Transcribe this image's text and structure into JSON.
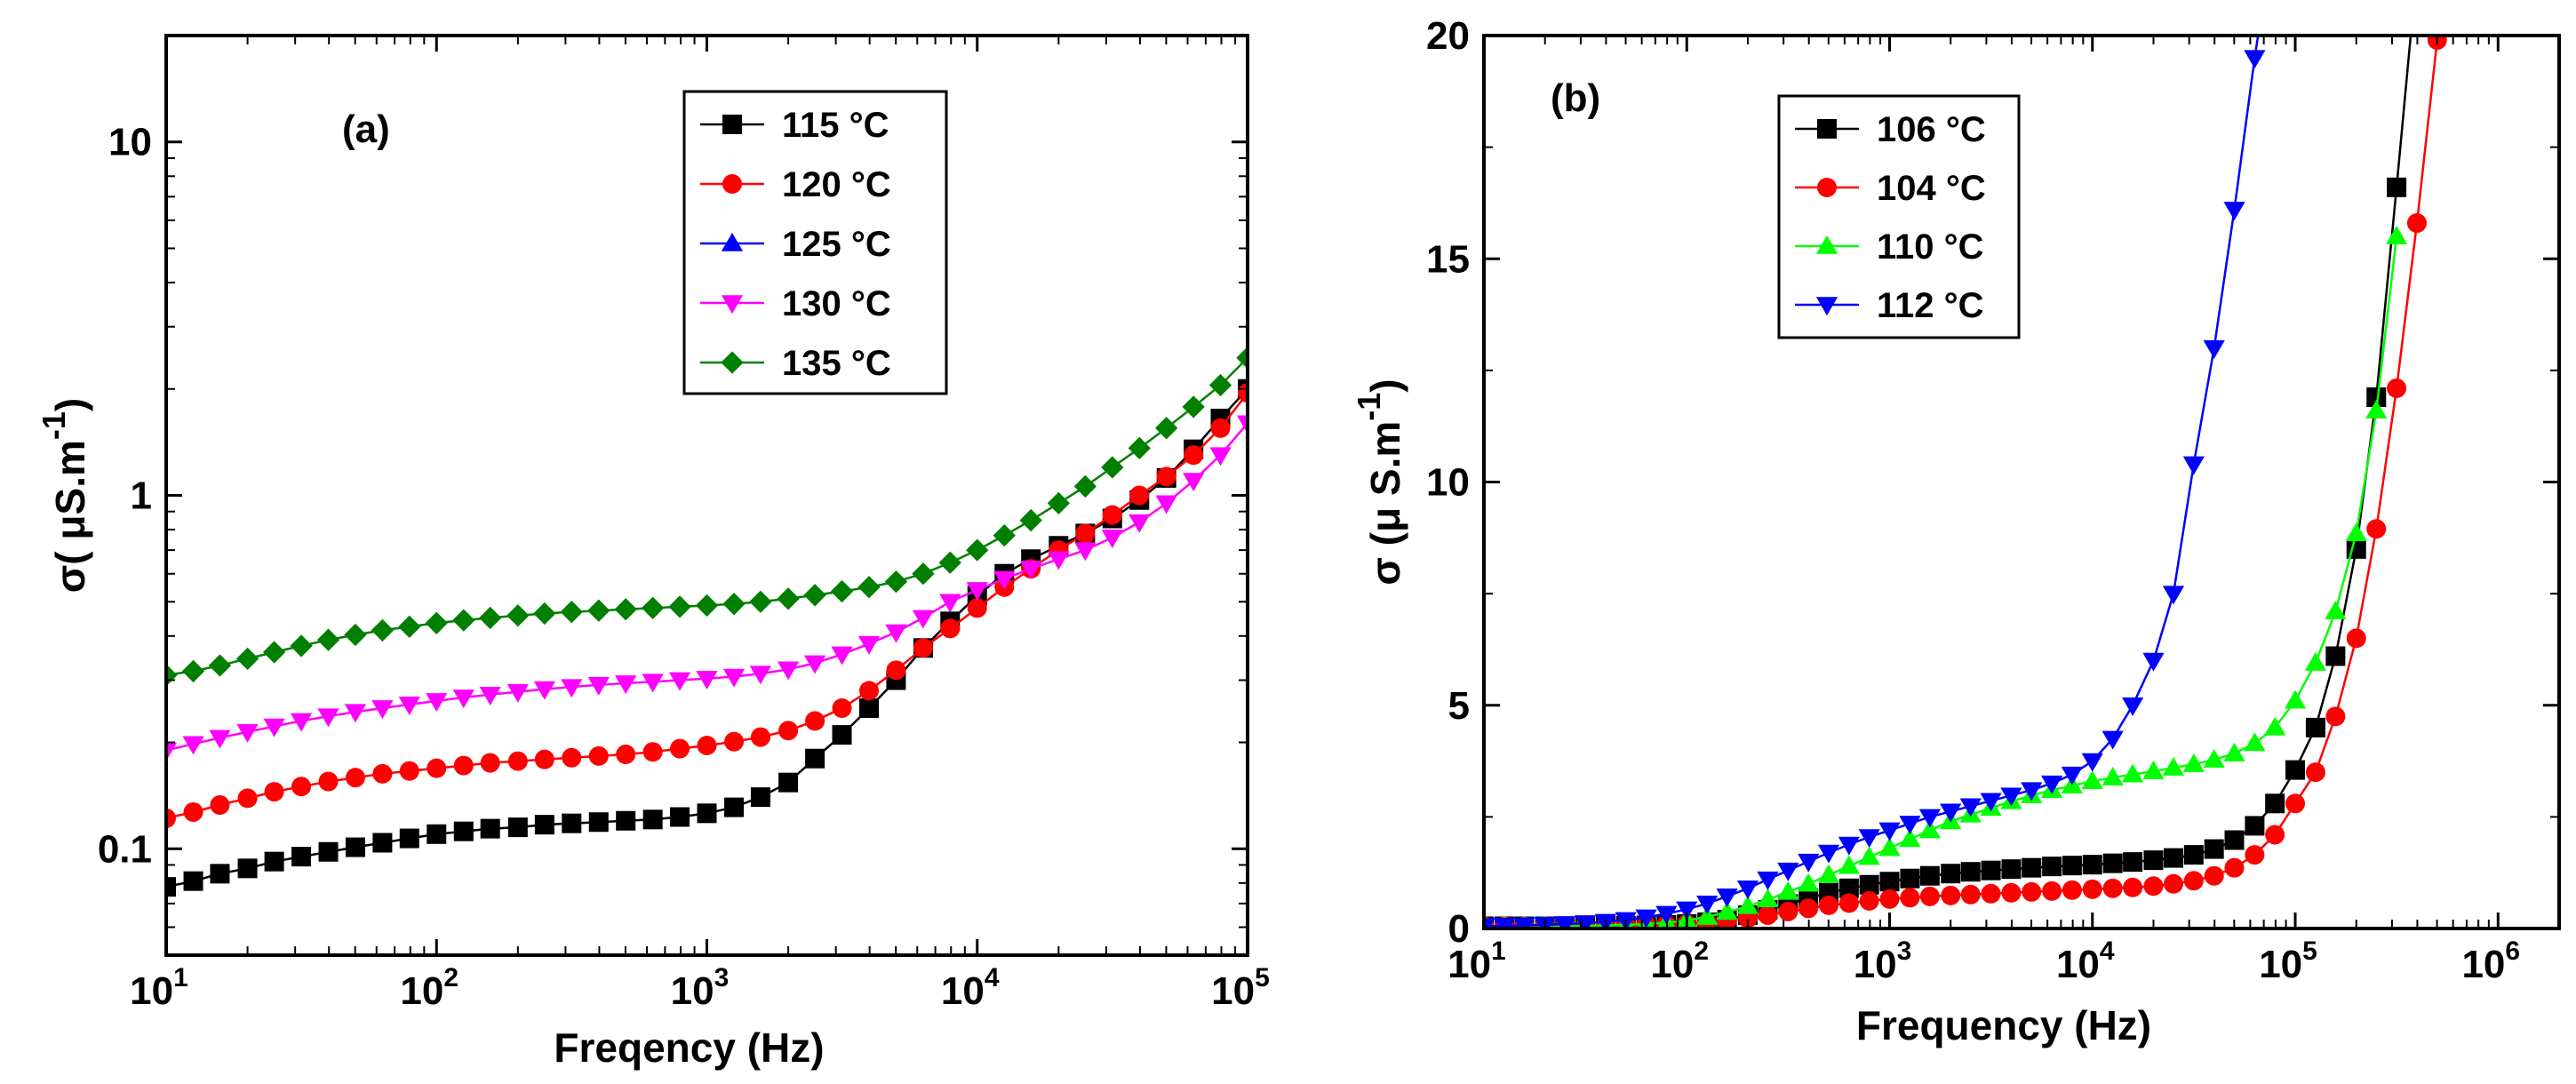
{
  "chart_data": [
    {
      "type": "line",
      "panel_label": "(a)",
      "xlabel": "Freqency (Hz)",
      "ylabel": "σ( μS.m",
      "ylabel_sup": "-1",
      "ylabel_close": ")",
      "xscale": "log",
      "yscale": "log",
      "xlim": [
        10,
        100000
      ],
      "ylim": [
        0.05,
        20
      ],
      "x_ticks": [
        {
          "base": "10",
          "exp": "1"
        },
        {
          "base": "10",
          "exp": "2"
        },
        {
          "base": "10",
          "exp": "3"
        },
        {
          "base": "10",
          "exp": "4"
        },
        {
          "base": "10",
          "exp": "5"
        }
      ],
      "y_ticks": [
        "0.1",
        "1",
        "10"
      ],
      "y_tick_values": [
        0.1,
        1,
        10
      ],
      "legend_position": "top-center",
      "series": [
        {
          "name": "115 °C",
          "color": "#000000",
          "marker": "square",
          "x": [
            10,
            12.6,
            15.8,
            20,
            25.1,
            31.6,
            39.8,
            50.1,
            63.1,
            79.4,
            100,
            126,
            158,
            200,
            251,
            316,
            398,
            501,
            631,
            794,
            1000,
            1260,
            1580,
            2000,
            2510,
            3160,
            3980,
            5010,
            6310,
            7940,
            10000,
            12600,
            15800,
            20000,
            25100,
            31600,
            39800,
            50100,
            63100,
            79400,
            100000
          ],
          "y": [
            0.078,
            0.081,
            0.085,
            0.088,
            0.092,
            0.095,
            0.098,
            0.101,
            0.104,
            0.107,
            0.11,
            0.112,
            0.114,
            0.115,
            0.117,
            0.118,
            0.119,
            0.12,
            0.121,
            0.123,
            0.126,
            0.131,
            0.14,
            0.154,
            0.18,
            0.21,
            0.25,
            0.3,
            0.37,
            0.44,
            0.52,
            0.6,
            0.66,
            0.72,
            0.78,
            0.86,
            0.97,
            1.12,
            1.35,
            1.65,
            2.0
          ]
        },
        {
          "name": "120 °C",
          "color": "#ff0000",
          "marker": "circle",
          "x": [
            10,
            12.6,
            15.8,
            20,
            25.1,
            31.6,
            39.8,
            50.1,
            63.1,
            79.4,
            100,
            126,
            158,
            200,
            251,
            316,
            398,
            501,
            631,
            794,
            1000,
            1260,
            1580,
            2000,
            2510,
            3160,
            3980,
            5010,
            6310,
            7940,
            10000,
            12600,
            15800,
            20000,
            25100,
            31600,
            39800,
            50100,
            63100,
            79400,
            100000
          ],
          "y": [
            0.122,
            0.127,
            0.133,
            0.139,
            0.145,
            0.15,
            0.155,
            0.159,
            0.163,
            0.166,
            0.169,
            0.172,
            0.175,
            0.177,
            0.179,
            0.181,
            0.183,
            0.185,
            0.188,
            0.192,
            0.196,
            0.201,
            0.207,
            0.216,
            0.23,
            0.25,
            0.28,
            0.32,
            0.37,
            0.42,
            0.48,
            0.55,
            0.62,
            0.7,
            0.78,
            0.88,
            1.0,
            1.13,
            1.3,
            1.55,
            1.95
          ]
        },
        {
          "name": "125 °C",
          "color": "#0000ff",
          "marker": "triangle-up",
          "x": [],
          "y": []
        },
        {
          "name": "130 °C",
          "color": "#ff00ff",
          "marker": "triangle-down",
          "x": [
            10,
            12.6,
            15.8,
            20,
            25.1,
            31.6,
            39.8,
            50.1,
            63.1,
            79.4,
            100,
            126,
            158,
            200,
            251,
            316,
            398,
            501,
            631,
            794,
            1000,
            1260,
            1580,
            2000,
            2510,
            3160,
            3980,
            5010,
            6310,
            7940,
            10000,
            12600,
            15800,
            20000,
            25100,
            31600,
            39800,
            50100,
            63100,
            79400,
            100000
          ],
          "y": [
            0.19,
            0.198,
            0.206,
            0.214,
            0.222,
            0.23,
            0.237,
            0.244,
            0.25,
            0.256,
            0.262,
            0.268,
            0.273,
            0.278,
            0.283,
            0.287,
            0.291,
            0.294,
            0.297,
            0.3,
            0.303,
            0.307,
            0.313,
            0.322,
            0.335,
            0.355,
            0.38,
            0.41,
            0.45,
            0.5,
            0.54,
            0.58,
            0.62,
            0.66,
            0.7,
            0.76,
            0.84,
            0.95,
            1.1,
            1.3,
            1.6
          ]
        },
        {
          "name": "135 °C",
          "color": "#007f00",
          "marker": "diamond",
          "x": [
            10,
            12.6,
            15.8,
            20,
            25.1,
            31.6,
            39.8,
            50.1,
            63.1,
            79.4,
            100,
            126,
            158,
            200,
            251,
            316,
            398,
            501,
            631,
            794,
            1000,
            1260,
            1580,
            2000,
            2510,
            3160,
            3980,
            5010,
            6310,
            7940,
            10000,
            12600,
            15800,
            20000,
            25100,
            31600,
            39800,
            50100,
            63100,
            79400,
            100000
          ],
          "y": [
            0.31,
            0.318,
            0.33,
            0.345,
            0.36,
            0.375,
            0.39,
            0.403,
            0.415,
            0.425,
            0.435,
            0.443,
            0.45,
            0.457,
            0.463,
            0.468,
            0.472,
            0.476,
            0.48,
            0.484,
            0.488,
            0.493,
            0.5,
            0.51,
            0.522,
            0.535,
            0.55,
            0.57,
            0.6,
            0.645,
            0.7,
            0.77,
            0.85,
            0.95,
            1.06,
            1.2,
            1.36,
            1.55,
            1.78,
            2.05,
            2.45
          ]
        }
      ]
    },
    {
      "type": "line",
      "panel_label": "(b)",
      "xlabel": "Frequency (Hz)",
      "ylabel": "σ (μ S.m",
      "ylabel_sup": "-1",
      "ylabel_close": ")",
      "xscale": "log",
      "yscale": "linear",
      "xlim": [
        10,
        2000000
      ],
      "ylim": [
        0,
        20
      ],
      "x_ticks": [
        {
          "base": "10",
          "exp": "1"
        },
        {
          "base": "10",
          "exp": "2"
        },
        {
          "base": "10",
          "exp": "3"
        },
        {
          "base": "10",
          "exp": "4"
        },
        {
          "base": "10",
          "exp": "5"
        },
        {
          "base": "10",
          "exp": "6"
        }
      ],
      "y_ticks": [
        "0",
        "5",
        "10",
        "15",
        "20"
      ],
      "y_tick_values": [
        0,
        5,
        10,
        15,
        20
      ],
      "legend_position": "top-left",
      "series": [
        {
          "name": "106 °C",
          "color": "#000000",
          "marker": "square",
          "x": [
            10,
            12.6,
            15.8,
            20,
            25.1,
            31.6,
            39.8,
            50.1,
            63.1,
            79.4,
            100,
            126,
            158,
            200,
            251,
            316,
            398,
            501,
            631,
            794,
            1000,
            1260,
            1580,
            2000,
            2510,
            3160,
            3980,
            5010,
            6310,
            7940,
            10000,
            12600,
            15800,
            20000,
            25100,
            31600,
            39800,
            50100,
            63100,
            79400,
            100000,
            126000,
            158000,
            200000,
            251000,
            316000,
            398000
          ],
          "y": [
            0.05,
            0.05,
            0.05,
            0.05,
            0.05,
            0.06,
            0.06,
            0.06,
            0.07,
            0.08,
            0.1,
            0.14,
            0.2,
            0.3,
            0.42,
            0.55,
            0.68,
            0.8,
            0.9,
            0.98,
            1.05,
            1.12,
            1.18,
            1.23,
            1.27,
            1.3,
            1.33,
            1.36,
            1.39,
            1.41,
            1.43,
            1.46,
            1.49,
            1.53,
            1.58,
            1.65,
            1.78,
            1.98,
            2.3,
            2.8,
            3.55,
            4.5,
            6.1,
            8.5,
            11.9,
            16.6,
            21.5
          ]
        },
        {
          "name": "104 °C",
          "color": "#ff0000",
          "marker": "circle",
          "x": [
            10,
            12.6,
            15.8,
            20,
            25.1,
            31.6,
            39.8,
            50.1,
            63.1,
            79.4,
            100,
            126,
            158,
            200,
            251,
            316,
            398,
            501,
            631,
            794,
            1000,
            1260,
            1580,
            2000,
            2510,
            3160,
            3980,
            5010,
            6310,
            7940,
            10000,
            12600,
            15800,
            20000,
            25100,
            31600,
            39800,
            50100,
            63100,
            79400,
            100000,
            126000,
            158000,
            200000,
            251000,
            316000,
            398000,
            501000
          ],
          "y": [
            0.05,
            0.05,
            0.05,
            0.05,
            0.05,
            0.06,
            0.06,
            0.06,
            0.07,
            0.08,
            0.1,
            0.13,
            0.17,
            0.23,
            0.3,
            0.38,
            0.45,
            0.52,
            0.57,
            0.62,
            0.66,
            0.69,
            0.72,
            0.74,
            0.76,
            0.78,
            0.8,
            0.82,
            0.84,
            0.86,
            0.88,
            0.9,
            0.92,
            0.95,
            1.0,
            1.07,
            1.18,
            1.36,
            1.65,
            2.1,
            2.8,
            3.5,
            4.75,
            6.5,
            8.95,
            12.1,
            15.8,
            19.9
          ]
        },
        {
          "name": "110 °C",
          "color": "#00ff00",
          "marker": "triangle-up",
          "x": [
            10,
            12.6,
            15.8,
            20,
            25.1,
            31.6,
            39.8,
            50.1,
            63.1,
            79.4,
            100,
            126,
            158,
            200,
            251,
            316,
            398,
            501,
            631,
            794,
            1000,
            1260,
            1580,
            2000,
            2510,
            3160,
            3980,
            5010,
            6310,
            7940,
            10000,
            12600,
            15800,
            20000,
            25100,
            31600,
            39800,
            50100,
            63100,
            79400,
            100000,
            126000,
            158000,
            200000,
            251000,
            316000
          ],
          "y": [
            0.05,
            0.05,
            0.05,
            0.05,
            0.05,
            0.06,
            0.07,
            0.08,
            0.1,
            0.13,
            0.18,
            0.26,
            0.37,
            0.5,
            0.65,
            0.82,
            1.0,
            1.2,
            1.4,
            1.6,
            1.8,
            2.0,
            2.2,
            2.4,
            2.55,
            2.7,
            2.85,
            2.98,
            3.1,
            3.2,
            3.3,
            3.38,
            3.45,
            3.52,
            3.6,
            3.68,
            3.78,
            3.92,
            4.15,
            4.5,
            5.1,
            5.95,
            7.1,
            8.85,
            11.6,
            15.5
          ]
        },
        {
          "name": "112 °C",
          "color": "#0000ff",
          "marker": "triangle-down",
          "x": [
            10,
            12.6,
            15.8,
            20,
            25.1,
            31.6,
            39.8,
            50.1,
            63.1,
            79.4,
            100,
            126,
            158,
            200,
            251,
            316,
            398,
            501,
            631,
            794,
            1000,
            1260,
            1580,
            2000,
            2510,
            3160,
            3980,
            5010,
            6310,
            7940,
            10000,
            12600,
            15800,
            20000,
            25100,
            31600,
            39800,
            50100,
            63100,
            79400
          ],
          "y": [
            0.05,
            0.06,
            0.07,
            0.08,
            0.1,
            0.12,
            0.15,
            0.19,
            0.25,
            0.33,
            0.43,
            0.56,
            0.72,
            0.9,
            1.1,
            1.3,
            1.5,
            1.7,
            1.88,
            2.05,
            2.2,
            2.35,
            2.5,
            2.62,
            2.74,
            2.86,
            2.98,
            3.1,
            3.25,
            3.45,
            3.75,
            4.25,
            5.0,
            6.0,
            7.5,
            10.4,
            13.0,
            16.1,
            19.5,
            22.5
          ]
        }
      ]
    }
  ]
}
